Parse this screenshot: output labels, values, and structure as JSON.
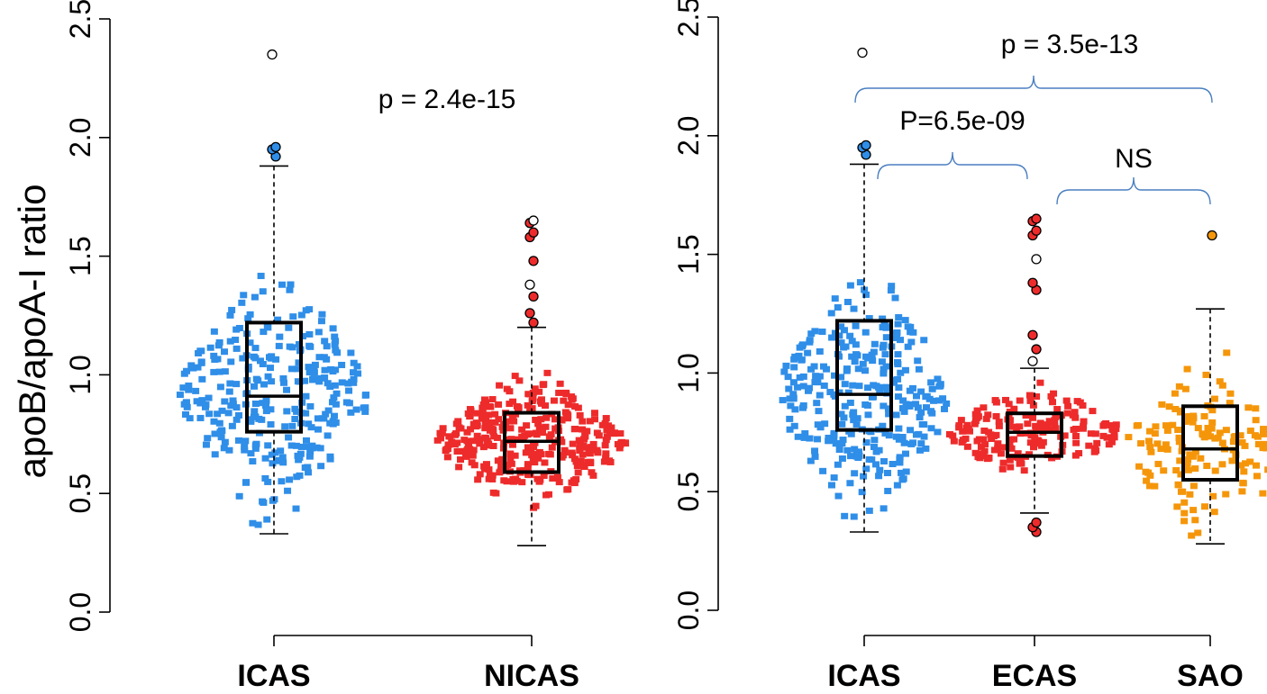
{
  "chart_data": [
    {
      "type": "box",
      "ylabel": "apoB/apoA-I ratio",
      "ylim": [
        0,
        2.5
      ],
      "yticks": [
        "0.0",
        "0.5",
        "1.0",
        "1.5",
        "2.0",
        "2.5"
      ],
      "categories": [
        "ICAS",
        "NICAS"
      ],
      "series": [
        {
          "name": "ICAS",
          "color": "#2f8ee8",
          "min": 0.33,
          "q1": 0.76,
          "median": 0.91,
          "q3": 1.22,
          "max": 1.88,
          "outliers": [
            1.92,
            1.95,
            1.96,
            2.35
          ],
          "n": 300
        },
        {
          "name": "NICAS",
          "color": "#ee2b2b",
          "min": 0.28,
          "q1": 0.59,
          "median": 0.72,
          "q3": 0.84,
          "max": 1.2,
          "outliers": [
            1.22,
            1.26,
            1.33,
            1.38,
            1.48,
            1.58,
            1.6,
            1.64,
            1.65
          ],
          "n": 340
        }
      ],
      "annotations": [
        {
          "text": "p = 2.4e-15"
        }
      ]
    },
    {
      "type": "box",
      "ylabel": "",
      "ylim": [
        0,
        2.5
      ],
      "yticks": [
        "0.0",
        "0.5",
        "1.0",
        "1.5",
        "2.0",
        "2.5"
      ],
      "categories": [
        "ICAS",
        "ECAS",
        "SAO"
      ],
      "series": [
        {
          "name": "ICAS",
          "color": "#2f8ee8",
          "min": 0.33,
          "q1": 0.76,
          "median": 0.91,
          "q3": 1.22,
          "max": 1.88,
          "outliers": [
            1.92,
            1.95,
            1.96,
            2.35
          ],
          "n": 300
        },
        {
          "name": "ECAS",
          "color": "#ee2b2b",
          "min": 0.41,
          "q1": 0.65,
          "median": 0.75,
          "q3": 0.83,
          "max": 1.02,
          "outliers": [
            0.33,
            0.35,
            0.37,
            1.05,
            1.1,
            1.16,
            1.35,
            1.38,
            1.48,
            1.58,
            1.6,
            1.64,
            1.65
          ],
          "n": 180
        },
        {
          "name": "SAO",
          "color": "#f5960a",
          "min": 0.28,
          "q1": 0.55,
          "median": 0.68,
          "q3": 0.86,
          "max": 1.27,
          "outliers": [
            1.58
          ],
          "n": 160
        }
      ],
      "annotations": [
        {
          "text": "p = 3.5e-13",
          "from": "ICAS",
          "to": "SAO"
        },
        {
          "text": "P=6.5e-09",
          "from": "ICAS",
          "to": "ECAS"
        },
        {
          "text": "NS",
          "from": "ECAS",
          "to": "SAO"
        }
      ]
    }
  ]
}
